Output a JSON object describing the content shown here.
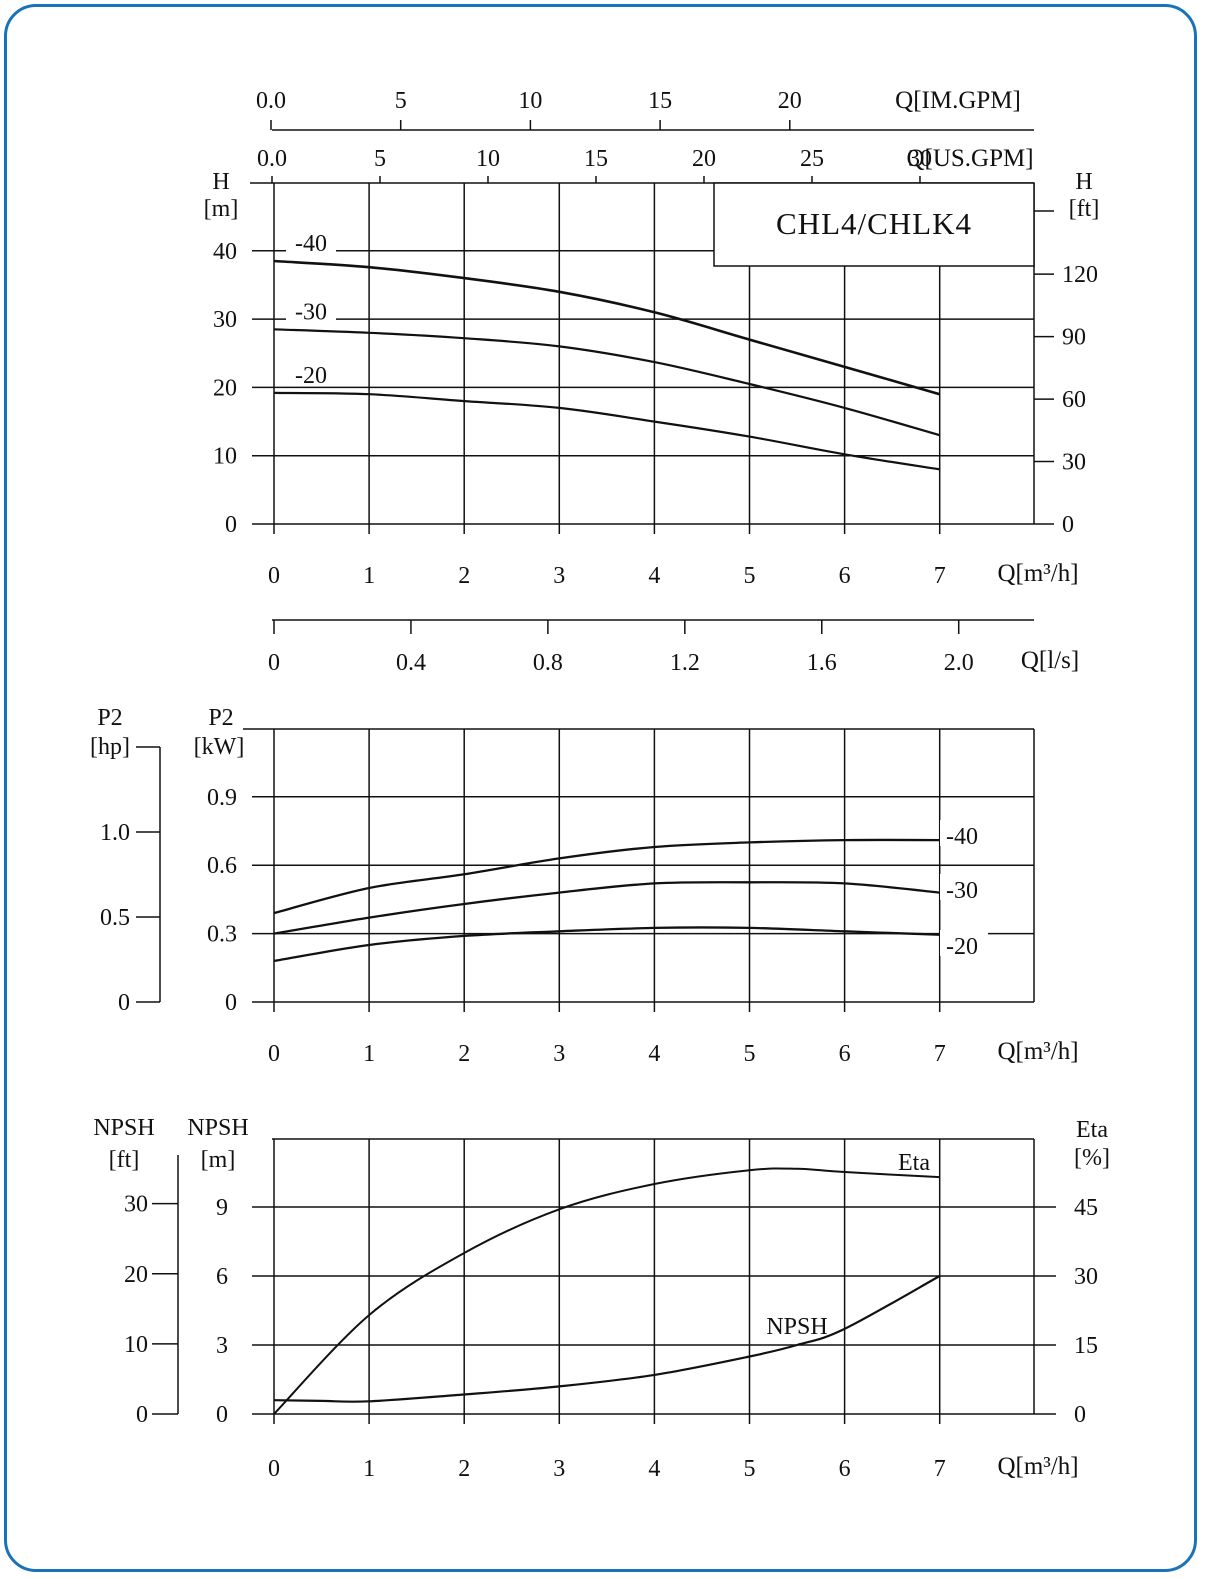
{
  "chart_data": [
    {
      "type": "line",
      "model_label": "CHL4/CHLK4",
      "x_unit": "Q[m³/h]",
      "x_ticks": [
        0,
        1,
        2,
        3,
        4,
        5,
        6,
        7
      ],
      "x_range": [
        0,
        8
      ],
      "top_axis_im_gpm": {
        "label": "Q[IM.GPM]",
        "ticks": [
          "0.0",
          "5",
          "10",
          "15",
          "20"
        ],
        "per_m3h": 3.6662
      },
      "top_axis_us_gpm": {
        "label": "Q[US.GPM]",
        "ticks": [
          "0.0",
          "5",
          "10",
          "15",
          "20",
          "25",
          "30"
        ],
        "per_m3h": 4.4029
      },
      "bottom_axis_ls": {
        "label": "Q[l/s]",
        "ticks": [
          "0",
          "0.4",
          "0.8",
          "1.2",
          "1.6",
          "2.0"
        ],
        "per_m3h": 0.27778
      },
      "y_left": {
        "label_line1": "H",
        "label_line2": "[m]",
        "ticks": [
          0,
          10,
          20,
          30,
          40
        ],
        "range": [
          0,
          50
        ]
      },
      "y_right": {
        "label_line1": "H",
        "label_line2": "[ft]",
        "ticks": [
          "0",
          "30",
          "60",
          "90",
          "120"
        ],
        "factor_per_m": 3.2808
      },
      "series": [
        {
          "name": "-40",
          "x": [
            0,
            1,
            2,
            3,
            4,
            5,
            6,
            7
          ],
          "y": [
            38.5,
            37.6,
            36.0,
            34.0,
            31.0,
            27.0,
            23.0,
            19.0
          ]
        },
        {
          "name": "-30",
          "x": [
            0,
            1,
            2,
            3,
            4,
            5,
            6,
            7
          ],
          "y": [
            28.5,
            28.0,
            27.2,
            26.0,
            23.7,
            20.5,
            17.0,
            13.0
          ]
        },
        {
          "name": "-20",
          "x": [
            0,
            1,
            2,
            3,
            4,
            5,
            6,
            7
          ],
          "y": [
            19.2,
            19.0,
            18.0,
            17.0,
            15.0,
            12.8,
            10.2,
            8.0
          ]
        }
      ]
    },
    {
      "type": "line",
      "x_unit": "Q[m³/h]",
      "x_ticks": [
        0,
        1,
        2,
        3,
        4,
        5,
        6,
        7
      ],
      "x_range": [
        0,
        8
      ],
      "y_left": {
        "label_line1": "P2",
        "label_line2": "[kW]",
        "ticks": [
          "0",
          "0.3",
          "0.6",
          "0.9"
        ],
        "range": [
          0,
          1.2
        ]
      },
      "y_hp": {
        "label_line1": "P2",
        "label_line2": "[hp]",
        "ticks": [
          "0",
          "0.5",
          "1.0"
        ],
        "factor_per_kw": 1.341
      },
      "series": [
        {
          "name": "-40",
          "x": [
            0,
            1,
            2,
            3,
            4,
            5,
            6,
            7
          ],
          "y": [
            0.39,
            0.5,
            0.56,
            0.63,
            0.68,
            0.7,
            0.71,
            0.71
          ]
        },
        {
          "name": "-30",
          "x": [
            0,
            1,
            2,
            3,
            4,
            5,
            6,
            7
          ],
          "y": [
            0.3,
            0.37,
            0.43,
            0.48,
            0.52,
            0.525,
            0.52,
            0.48
          ]
        },
        {
          "name": "-20",
          "x": [
            0,
            1,
            2,
            3,
            4,
            5,
            6,
            7
          ],
          "y": [
            0.18,
            0.25,
            0.29,
            0.31,
            0.325,
            0.325,
            0.31,
            0.295
          ]
        }
      ]
    },
    {
      "type": "line",
      "x_unit": "Q[m³/h]",
      "x_ticks": [
        0,
        1,
        2,
        3,
        4,
        5,
        6,
        7
      ],
      "x_range": [
        0,
        8
      ],
      "y_left": {
        "label_line1": "NPSH",
        "label_line2": "[m]",
        "ticks": [
          0,
          3,
          6,
          9
        ],
        "range": [
          0,
          12
        ]
      },
      "y_ft": {
        "label_line1": "NPSH",
        "label_line2": "[ft]",
        "ticks": [
          "0",
          "10",
          "20",
          "30"
        ],
        "factor_per_m": 3.2808
      },
      "y_right": {
        "label_line1": "Eta",
        "label_line2": "[%]",
        "ticks": [
          "0",
          "15",
          "30",
          "45"
        ],
        "factor": 5
      },
      "series": [
        {
          "name": "Eta",
          "x": [
            0,
            1,
            2,
            3,
            4,
            5,
            5.5,
            6,
            7
          ],
          "y_eta_pct": [
            0,
            21.5,
            35,
            44.5,
            50,
            53,
            53.3,
            52.6,
            51.5
          ]
        },
        {
          "name": "NPSH",
          "x": [
            0,
            0.5,
            1,
            2,
            3,
            4,
            5,
            5.5,
            6,
            7
          ],
          "y": [
            0.6,
            0.57,
            0.55,
            0.85,
            1.2,
            1.7,
            2.5,
            3.0,
            3.7,
            6.0
          ]
        }
      ]
    }
  ]
}
